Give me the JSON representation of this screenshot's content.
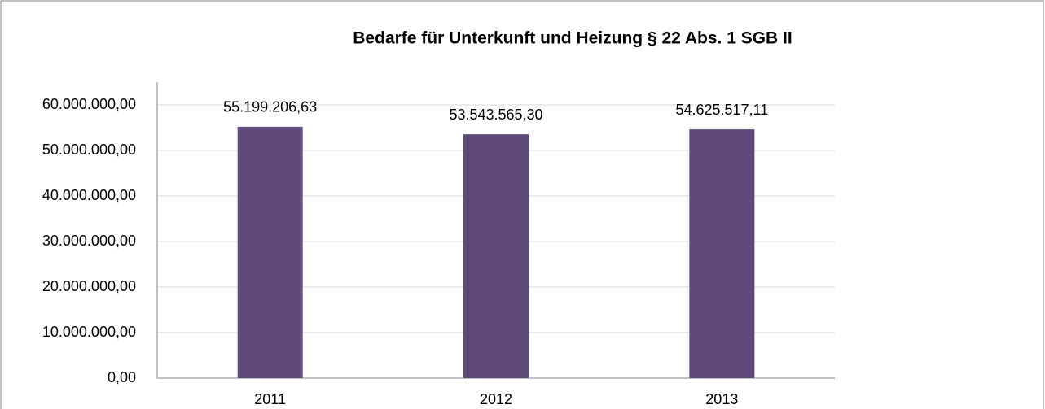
{
  "chart_data": {
    "type": "bar",
    "title": "Bedarfe für Unterkunft und Heizung § 22 Abs. 1 SGB II",
    "categories": [
      "2011",
      "2012",
      "2013"
    ],
    "values": [
      55199206.63,
      53543565.3,
      54625517.11
    ],
    "value_labels": [
      "55.199.206,63",
      "53.543.565,30",
      "54.625.517,11"
    ],
    "color": "#604a7b",
    "ylim": [
      0,
      65000000
    ],
    "yticks": [
      {
        "value": 0,
        "label": "0,00"
      },
      {
        "value": 10000000,
        "label": "10.000.000,00"
      },
      {
        "value": 20000000,
        "label": "20.000.000,00"
      },
      {
        "value": 30000000,
        "label": "30.000.000,00"
      },
      {
        "value": 40000000,
        "label": "40.000.000,00"
      },
      {
        "value": 50000000,
        "label": "50.000.000,00"
      },
      {
        "value": 60000000,
        "label": "60.000.000,00"
      }
    ],
    "grid": true
  }
}
